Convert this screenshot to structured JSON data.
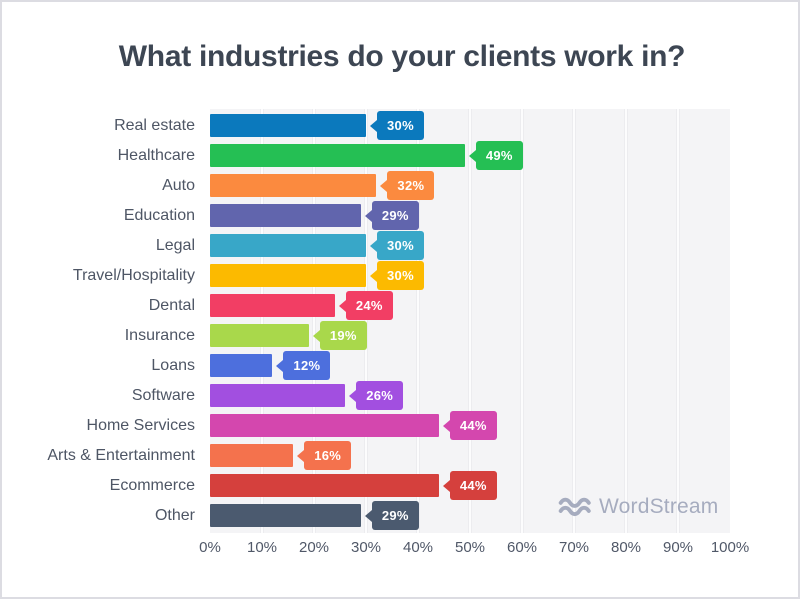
{
  "title": "What industries do your clients work in?",
  "logo": {
    "text": "WordStream",
    "icon": "waves-icon",
    "color": "#a6acbf"
  },
  "chart_data": {
    "type": "bar",
    "orientation": "horizontal",
    "title": "What industries do your clients work in?",
    "categories": [
      "Real estate",
      "Healthcare",
      "Auto",
      "Education",
      "Legal",
      "Travel/Hospitality",
      "Dental",
      "Insurance",
      "Loans",
      "Software",
      "Home Services",
      "Arts & Entertainment",
      "Ecommerce",
      "Other"
    ],
    "values": [
      30,
      49,
      32,
      29,
      30,
      30,
      24,
      19,
      12,
      26,
      44,
      16,
      44,
      29
    ],
    "value_labels": [
      "30%",
      "49%",
      "32%",
      "29%",
      "30%",
      "30%",
      "24%",
      "19%",
      "12%",
      "26%",
      "44%",
      "16%",
      "44%",
      "29%"
    ],
    "colors": [
      "#0b79bd",
      "#25bf54",
      "#fb8a3f",
      "#6165ad",
      "#38a7c8",
      "#fcba00",
      "#f23e64",
      "#a9d84b",
      "#4d6fdd",
      "#a24fe0",
      "#d447ae",
      "#f4724d",
      "#d5403d",
      "#4b5a6f"
    ],
    "xlabel": "",
    "ylabel": "",
    "xlim": [
      0,
      100
    ],
    "x_ticks": [
      "0%",
      "10%",
      "20%",
      "30%",
      "40%",
      "50%",
      "60%",
      "70%",
      "80%",
      "90%",
      "100%"
    ],
    "grid": "vertical",
    "legend": "none",
    "plot_background": "#f4f4f6",
    "gridline_color": "#fcfcfd",
    "label_color": "#4e5665",
    "title_color": "#3d4653"
  }
}
